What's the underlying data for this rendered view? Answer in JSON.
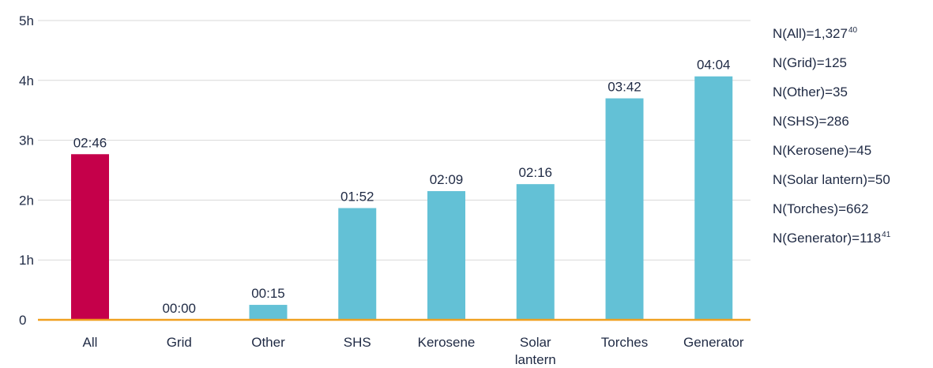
{
  "chart_data": {
    "type": "bar",
    "categories": [
      "All",
      "Grid",
      "Other",
      "SHS",
      "Kerosene",
      "Solar lantern",
      "Torches",
      "Generator"
    ],
    "category_lines": [
      [
        "All"
      ],
      [
        "Grid"
      ],
      [
        "Other"
      ],
      [
        "SHS"
      ],
      [
        "Kerosene"
      ],
      [
        "Solar",
        "lantern"
      ],
      [
        "Torches"
      ],
      [
        "Generator"
      ]
    ],
    "values": [
      2.767,
      0,
      0.25,
      1.867,
      2.15,
      2.267,
      3.7,
      4.067
    ],
    "data_labels": [
      "02:46",
      "00:00",
      "00:15",
      "01:52",
      "02:09",
      "02:16",
      "03:42",
      "04:04"
    ],
    "y_ticks": [
      0,
      1,
      2,
      3,
      4,
      5
    ],
    "y_tick_labels": [
      "0",
      "1h",
      "2h",
      "3h",
      "4h",
      "5h"
    ],
    "ylim": [
      0,
      5
    ],
    "grid": true,
    "colors": {
      "highlight": "#c5004a",
      "bar": "#63c1d6",
      "baseline": "#f0a020",
      "grid": "#d9d9d9"
    },
    "highlight_index": 0
  },
  "notes": [
    {
      "text": "N(All)=1,327",
      "sup": "40"
    },
    {
      "text": "N(Grid)=125",
      "sup": ""
    },
    {
      "text": "N(Other)=35",
      "sup": ""
    },
    {
      "text": "N(SHS)=286",
      "sup": ""
    },
    {
      "text": "N(Kerosene)=45",
      "sup": ""
    },
    {
      "text": "N(Solar lantern)=50",
      "sup": ""
    },
    {
      "text": "N(Torches)=662",
      "sup": ""
    },
    {
      "text": "N(Generator)=118",
      "sup": "41"
    }
  ]
}
